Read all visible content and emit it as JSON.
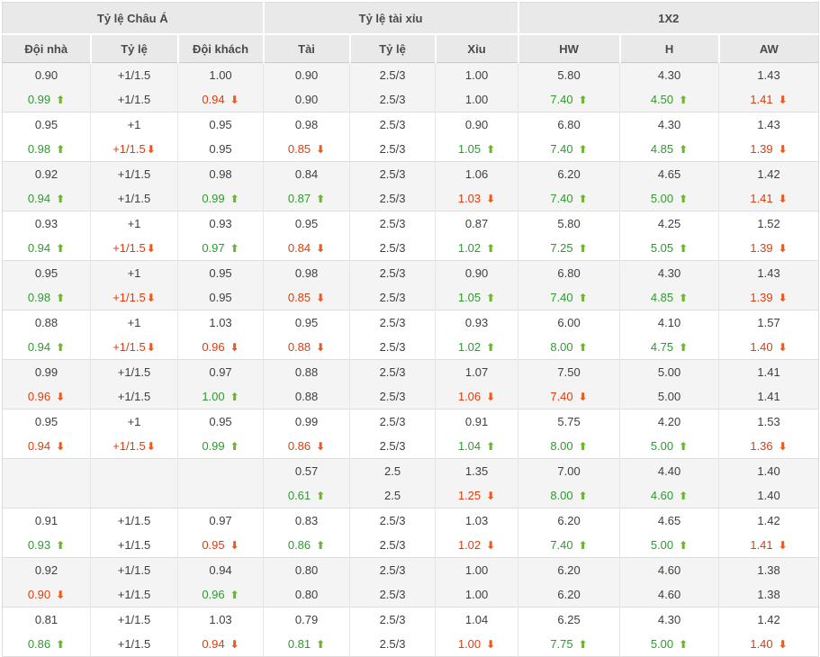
{
  "colors": {
    "up_text": "#2e9b2e",
    "up_arrow": "#6cb52d",
    "down_text": "#e03c0c",
    "down_arrow": "#ed5a1e",
    "header_bg": "#e9e9e9",
    "row_alt_bg": "#f4f4f4"
  },
  "icons": {
    "up": "⬆",
    "down": "⬇"
  },
  "table": {
    "sections": [
      {
        "label": "Tỷ lệ Châu Á",
        "columns": [
          "Đội nhà",
          "Tỷ lệ",
          "Đội khách"
        ]
      },
      {
        "label": "Tỷ lệ tài xỉu",
        "columns": [
          "Tài",
          "Tỷ lệ",
          "Xỉu"
        ]
      },
      {
        "label": "1X2",
        "columns": [
          "HW",
          "H",
          "AW"
        ]
      }
    ],
    "groups": [
      {
        "shaded": true,
        "rows": [
          [
            "0.90",
            "+1/1.5",
            "1.00",
            "0.90",
            "2.5/3",
            "1.00",
            "5.80",
            "4.30",
            "1.43"
          ],
          [
            {
              "v": "0.99",
              "t": "up"
            },
            "+1/1.5",
            {
              "v": "0.94",
              "t": "down"
            },
            "0.90",
            "2.5/3",
            "1.00",
            {
              "v": "7.40",
              "t": "up"
            },
            {
              "v": "4.50",
              "t": "up"
            },
            {
              "v": "1.41",
              "t": "down"
            }
          ]
        ]
      },
      {
        "shaded": false,
        "rows": [
          [
            "0.95",
            "+1",
            "0.95",
            "0.98",
            "2.5/3",
            "0.90",
            "6.80",
            "4.30",
            "1.43"
          ],
          [
            {
              "v": "0.98",
              "t": "up"
            },
            {
              "v": "+1/1.5",
              "t": "down",
              "tight": true
            },
            "0.95",
            {
              "v": "0.85",
              "t": "down"
            },
            "2.5/3",
            {
              "v": "1.05",
              "t": "up"
            },
            {
              "v": "7.40",
              "t": "up"
            },
            {
              "v": "4.85",
              "t": "up"
            },
            {
              "v": "1.39",
              "t": "down"
            }
          ]
        ]
      },
      {
        "shaded": true,
        "rows": [
          [
            "0.92",
            "+1/1.5",
            "0.98",
            "0.84",
            "2.5/3",
            "1.06",
            "6.20",
            "4.65",
            "1.42"
          ],
          [
            {
              "v": "0.94",
              "t": "up"
            },
            "+1/1.5",
            {
              "v": "0.99",
              "t": "up"
            },
            {
              "v": "0.87",
              "t": "up"
            },
            "2.5/3",
            {
              "v": "1.03",
              "t": "down"
            },
            {
              "v": "7.40",
              "t": "up"
            },
            {
              "v": "5.00",
              "t": "up"
            },
            {
              "v": "1.41",
              "t": "down"
            }
          ]
        ]
      },
      {
        "shaded": false,
        "rows": [
          [
            "0.93",
            "+1",
            "0.93",
            "0.95",
            "2.5/3",
            "0.87",
            "5.80",
            "4.25",
            "1.52"
          ],
          [
            {
              "v": "0.94",
              "t": "up"
            },
            {
              "v": "+1/1.5",
              "t": "down",
              "tight": true
            },
            {
              "v": "0.97",
              "t": "up"
            },
            {
              "v": "0.84",
              "t": "down"
            },
            "2.5/3",
            {
              "v": "1.02",
              "t": "up"
            },
            {
              "v": "7.25",
              "t": "up"
            },
            {
              "v": "5.05",
              "t": "up"
            },
            {
              "v": "1.39",
              "t": "down"
            }
          ]
        ]
      },
      {
        "shaded": true,
        "rows": [
          [
            "0.95",
            "+1",
            "0.95",
            "0.98",
            "2.5/3",
            "0.90",
            "6.80",
            "4.30",
            "1.43"
          ],
          [
            {
              "v": "0.98",
              "t": "up"
            },
            {
              "v": "+1/1.5",
              "t": "down",
              "tight": true
            },
            "0.95",
            {
              "v": "0.85",
              "t": "down"
            },
            "2.5/3",
            {
              "v": "1.05",
              "t": "up"
            },
            {
              "v": "7.40",
              "t": "up"
            },
            {
              "v": "4.85",
              "t": "up"
            },
            {
              "v": "1.39",
              "t": "down"
            }
          ]
        ]
      },
      {
        "shaded": false,
        "rows": [
          [
            "0.88",
            "+1",
            "1.03",
            "0.95",
            "2.5/3",
            "0.93",
            "6.00",
            "4.10",
            "1.57"
          ],
          [
            {
              "v": "0.94",
              "t": "up"
            },
            {
              "v": "+1/1.5",
              "t": "down",
              "tight": true
            },
            {
              "v": "0.96",
              "t": "down"
            },
            {
              "v": "0.88",
              "t": "down"
            },
            "2.5/3",
            {
              "v": "1.02",
              "t": "up"
            },
            {
              "v": "8.00",
              "t": "up"
            },
            {
              "v": "4.75",
              "t": "up"
            },
            {
              "v": "1.40",
              "t": "down"
            }
          ]
        ]
      },
      {
        "shaded": true,
        "rows": [
          [
            "0.99",
            "+1/1.5",
            "0.97",
            "0.88",
            "2.5/3",
            "1.07",
            "7.50",
            "5.00",
            "1.41"
          ],
          [
            {
              "v": "0.96",
              "t": "down"
            },
            "+1/1.5",
            {
              "v": "1.00",
              "t": "up"
            },
            "0.88",
            "2.5/3",
            {
              "v": "1.06",
              "t": "down"
            },
            {
              "v": "7.40",
              "t": "down"
            },
            "5.00",
            "1.41"
          ]
        ]
      },
      {
        "shaded": false,
        "rows": [
          [
            "0.95",
            "+1",
            "0.95",
            "0.99",
            "2.5/3",
            "0.91",
            "5.75",
            "4.20",
            "1.53"
          ],
          [
            {
              "v": "0.94",
              "t": "down"
            },
            {
              "v": "+1/1.5",
              "t": "down",
              "tight": true
            },
            {
              "v": "0.99",
              "t": "up"
            },
            {
              "v": "0.86",
              "t": "down"
            },
            "2.5/3",
            {
              "v": "1.04",
              "t": "up"
            },
            {
              "v": "8.00",
              "t": "up"
            },
            {
              "v": "5.00",
              "t": "up"
            },
            {
              "v": "1.36",
              "t": "down"
            }
          ]
        ]
      },
      {
        "shaded": true,
        "rows": [
          [
            "",
            "",
            "",
            "0.57",
            "2.5",
            "1.35",
            "7.00",
            "4.40",
            "1.40"
          ],
          [
            "",
            "",
            "",
            {
              "v": "0.61",
              "t": "up"
            },
            "2.5",
            {
              "v": "1.25",
              "t": "down"
            },
            {
              "v": "8.00",
              "t": "up"
            },
            {
              "v": "4.60",
              "t": "up"
            },
            "1.40"
          ]
        ]
      },
      {
        "shaded": false,
        "rows": [
          [
            "0.91",
            "+1/1.5",
            "0.97",
            "0.83",
            "2.5/3",
            "1.03",
            "6.20",
            "4.65",
            "1.42"
          ],
          [
            {
              "v": "0.93",
              "t": "up"
            },
            "+1/1.5",
            {
              "v": "0.95",
              "t": "down"
            },
            {
              "v": "0.86",
              "t": "up"
            },
            "2.5/3",
            {
              "v": "1.02",
              "t": "down"
            },
            {
              "v": "7.40",
              "t": "up"
            },
            {
              "v": "5.00",
              "t": "up"
            },
            {
              "v": "1.41",
              "t": "down"
            }
          ]
        ]
      },
      {
        "shaded": true,
        "rows": [
          [
            "0.92",
            "+1/1.5",
            "0.94",
            "0.80",
            "2.5/3",
            "1.00",
            "6.20",
            "4.60",
            "1.38"
          ],
          [
            {
              "v": "0.90",
              "t": "down"
            },
            "+1/1.5",
            {
              "v": "0.96",
              "t": "up"
            },
            "0.80",
            "2.5/3",
            "1.00",
            "6.20",
            "4.60",
            "1.38"
          ]
        ]
      },
      {
        "shaded": false,
        "rows": [
          [
            "0.81",
            "+1/1.5",
            "1.03",
            "0.79",
            "2.5/3",
            "1.04",
            "6.25",
            "4.30",
            "1.42"
          ],
          [
            {
              "v": "0.86",
              "t": "up"
            },
            "+1/1.5",
            {
              "v": "0.94",
              "t": "down"
            },
            {
              "v": "0.81",
              "t": "up"
            },
            "2.5/3",
            {
              "v": "1.00",
              "t": "down"
            },
            {
              "v": "7.75",
              "t": "up"
            },
            {
              "v": "5.00",
              "t": "up"
            },
            {
              "v": "1.40",
              "t": "down"
            }
          ]
        ]
      }
    ]
  }
}
